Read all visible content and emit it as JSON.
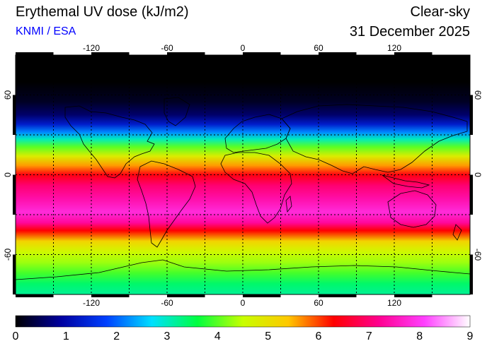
{
  "header": {
    "title": "Erythemal UV dose (kJ/m2)",
    "source": "KNMI / ESA",
    "condition": "Clear-sky",
    "date": "31 December 2025"
  },
  "map": {
    "lon_ticks": [
      "-120",
      "-60",
      "0",
      "60",
      "120"
    ],
    "lat_ticks": [
      "60",
      "0",
      "-60"
    ],
    "lon_range": [
      -180,
      180
    ],
    "lat_range": [
      -90,
      90
    ],
    "gridlines": "dashed every 30 degrees"
  },
  "colorbar": {
    "min": 0,
    "max": 9,
    "labels": [
      "0",
      "1",
      "2",
      "3",
      "4",
      "5",
      "6",
      "7",
      "8",
      "9"
    ],
    "colors": [
      "#000000",
      "#0000a0",
      "#0040ff",
      "#00e0ff",
      "#00ff40",
      "#c8ff00",
      "#ffc800",
      "#ff0000",
      "#ff0090",
      "#ff40ff",
      "#ffffff"
    ]
  },
  "chart_data": {
    "type": "heatmap",
    "title": "Erythemal UV dose (kJ/m2)",
    "xlabel": "",
    "ylabel": "",
    "xlim": [
      -180,
      180
    ],
    "ylim": [
      -90,
      90
    ],
    "zone_profile": [
      {
        "lat": 90,
        "value": 0
      },
      {
        "lat": 70,
        "value": 0
      },
      {
        "lat": 55,
        "value": 0.2
      },
      {
        "lat": 45,
        "value": 0.6
      },
      {
        "lat": 38,
        "value": 1.3
      },
      {
        "lat": 32,
        "value": 2.2
      },
      {
        "lat": 27,
        "value": 3.0
      },
      {
        "lat": 21,
        "value": 4.0
      },
      {
        "lat": 14,
        "value": 4.8
      },
      {
        "lat": 7,
        "value": 5.6
      },
      {
        "lat": 0,
        "value": 6.4
      },
      {
        "lat": -8,
        "value": 7.0
      },
      {
        "lat": -18,
        "value": 7.4
      },
      {
        "lat": -28,
        "value": 7.8
      },
      {
        "lat": -36,
        "value": 7.3
      },
      {
        "lat": -42,
        "value": 6.3
      },
      {
        "lat": -50,
        "value": 5.2
      },
      {
        "lat": -58,
        "value": 4.6
      },
      {
        "lat": -66,
        "value": 4.3
      },
      {
        "lat": -74,
        "value": 3.9
      },
      {
        "lat": -82,
        "value": 3.4
      },
      {
        "lat": -90,
        "value": 3.2
      }
    ]
  }
}
